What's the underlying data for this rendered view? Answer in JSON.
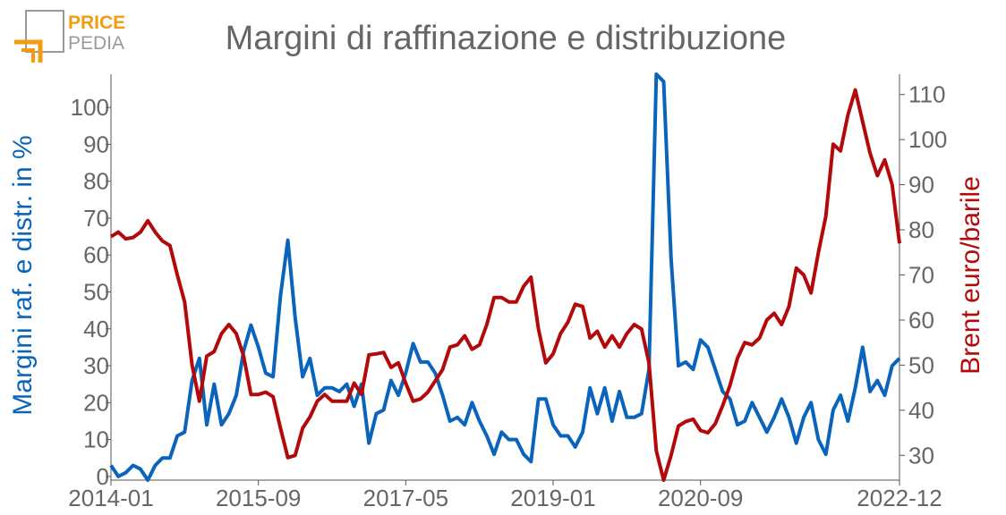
{
  "logo": {
    "line1": "PRICE",
    "line2": "PEDIA",
    "colors": {
      "orange": "#f39c12",
      "gray": "#9a9a9a"
    }
  },
  "chart_data": {
    "type": "line",
    "title": "Margini di raffinazione e distribuzione",
    "colors": {
      "margins": "#0a64bc",
      "brent": "#b20a0a",
      "text": "#666666",
      "axis": "#555555"
    },
    "x_tick_labels": [
      "2014-01",
      "2015-09",
      "2017-05",
      "2019-01",
      "2020-09",
      "2022-12"
    ],
    "x_tick_indices": [
      0,
      20,
      40,
      60,
      80,
      107
    ],
    "left_axis": {
      "label": "Margini raf. e distr. in %",
      "range": [
        -1,
        109
      ],
      "ticks": [
        0,
        10,
        20,
        30,
        40,
        50,
        60,
        70,
        80,
        90,
        100
      ]
    },
    "right_axis": {
      "label": "Brent euro/barile",
      "range": [
        24.5,
        114.5
      ],
      "ticks": [
        30,
        40,
        50,
        60,
        70,
        80,
        90,
        100,
        110
      ]
    },
    "grid": false,
    "series": [
      {
        "axis": "left",
        "values": [
          3,
          0,
          1,
          3,
          2,
          -1,
          3,
          5,
          5,
          11,
          12,
          26,
          32,
          14,
          25,
          14,
          17,
          22,
          34,
          41,
          35,
          28,
          27,
          49,
          64,
          43,
          27,
          32,
          22,
          24,
          24,
          23,
          25,
          19,
          25,
          9,
          17,
          18,
          26,
          22,
          28,
          36,
          31,
          31,
          28,
          22,
          15,
          16,
          14,
          20,
          15,
          11,
          6,
          12,
          10,
          10,
          6,
          4,
          21,
          21,
          14,
          11,
          11,
          8,
          12,
          24,
          17,
          24,
          15,
          23,
          16,
          16,
          17,
          29,
          109,
          107,
          59,
          30,
          31,
          29,
          37,
          35,
          29,
          23,
          21,
          14,
          15,
          20,
          16,
          12,
          16,
          21,
          16,
          9,
          16,
          20,
          10,
          6,
          18,
          22,
          15,
          24,
          35,
          23,
          26,
          22,
          30,
          32
        ]
      },
      {
        "axis": "right",
        "values": [
          78.5,
          79.5,
          78,
          78.3,
          79.5,
          82,
          79.5,
          77.5,
          76.5,
          70,
          64,
          50,
          42,
          52,
          53,
          57,
          59,
          57,
          52,
          43.5,
          43.5,
          44,
          43,
          36,
          29.5,
          30,
          36,
          38.5,
          42,
          43.5,
          42,
          42,
          42,
          46,
          43.5,
          52.3,
          52.5,
          52.8,
          49.5,
          50.5,
          46,
          42,
          42.5,
          44,
          46.5,
          49,
          54,
          54.5,
          56.5,
          53.5,
          54.5,
          59,
          65,
          65,
          64,
          64,
          67.5,
          69.5,
          58,
          50.5,
          52.5,
          57,
          59.5,
          63.5,
          63,
          56,
          57.5,
          54,
          56.5,
          54,
          57,
          59,
          58,
          50.5,
          31,
          24.5,
          30,
          36.5,
          37.5,
          38,
          35.5,
          35,
          37,
          41,
          45.5,
          51.5,
          55,
          54.5,
          56,
          60,
          61.5,
          59,
          63,
          71.5,
          70,
          66,
          75,
          83,
          99,
          97.5,
          105.5,
          111,
          104,
          97,
          92,
          95.5,
          90,
          77
        ]
      }
    ]
  }
}
